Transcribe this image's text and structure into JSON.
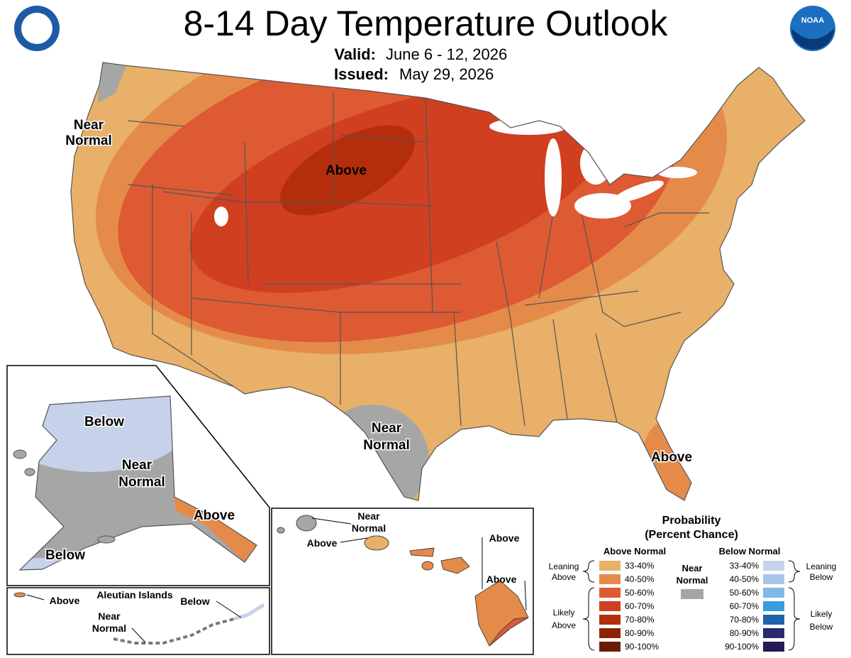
{
  "header": {
    "title": "8-14 Day Temperature Outlook",
    "valid_label": "Valid:",
    "valid": "June 6 - 12, 2026",
    "issued_label": "Issued:",
    "issued": "May 29, 2026",
    "logo": "NOAA"
  },
  "conus_labels": {
    "west_near": [
      "Near",
      "Normal"
    ],
    "center_above": "Above",
    "texas_near": [
      "Near",
      "Normal"
    ],
    "florida_above": "Above"
  },
  "alaska_labels": {
    "north_below": "Below",
    "near": [
      "Near",
      "Normal"
    ],
    "panhandle_above": "Above",
    "southwest_below": "Below"
  },
  "aleutian_labels": {
    "title": "Aleutian Islands",
    "above": "Above",
    "near": [
      "Near",
      "Normal"
    ],
    "below": "Below"
  },
  "hawaii_labels": {
    "near": [
      "Near",
      "Normal"
    ],
    "above_1": "Above",
    "above_2": "Above",
    "above_3": "Above"
  },
  "legend": {
    "title": "Probability",
    "subtitle": "(Percent Chance)",
    "above_heading": "Above Normal",
    "below_heading": "Below Normal",
    "near": {
      "lines": [
        "Near",
        "Normal"
      ],
      "color": "#a6a6a6"
    },
    "leaning_above": [
      "Leaning",
      "Above"
    ],
    "likely_above": [
      "Likely",
      "Above"
    ],
    "leaning_below": [
      "Leaning",
      "Below"
    ],
    "likely_below": [
      "Likely",
      "Below"
    ],
    "above": [
      {
        "label": "33-40%",
        "color": "#e8b068"
      },
      {
        "label": "40-50%",
        "color": "#e58b4a"
      },
      {
        "label": "50-60%",
        "color": "#dd5a33"
      },
      {
        "label": "60-70%",
        "color": "#cf3f20"
      },
      {
        "label": "70-80%",
        "color": "#b52e0c"
      },
      {
        "label": "80-90%",
        "color": "#8e2207"
      },
      {
        "label": "90-100%",
        "color": "#6a1b04"
      }
    ],
    "below": [
      {
        "label": "33-40%",
        "color": "#c6d1ea"
      },
      {
        "label": "40-50%",
        "color": "#a8c6e8"
      },
      {
        "label": "50-60%",
        "color": "#80b8e6"
      },
      {
        "label": "60-70%",
        "color": "#3a9ae0"
      },
      {
        "label": "70-80%",
        "color": "#1e64ad"
      },
      {
        "label": "80-90%",
        "color": "#2b2a6e"
      },
      {
        "label": "90-100%",
        "color": "#221b55"
      }
    ]
  }
}
